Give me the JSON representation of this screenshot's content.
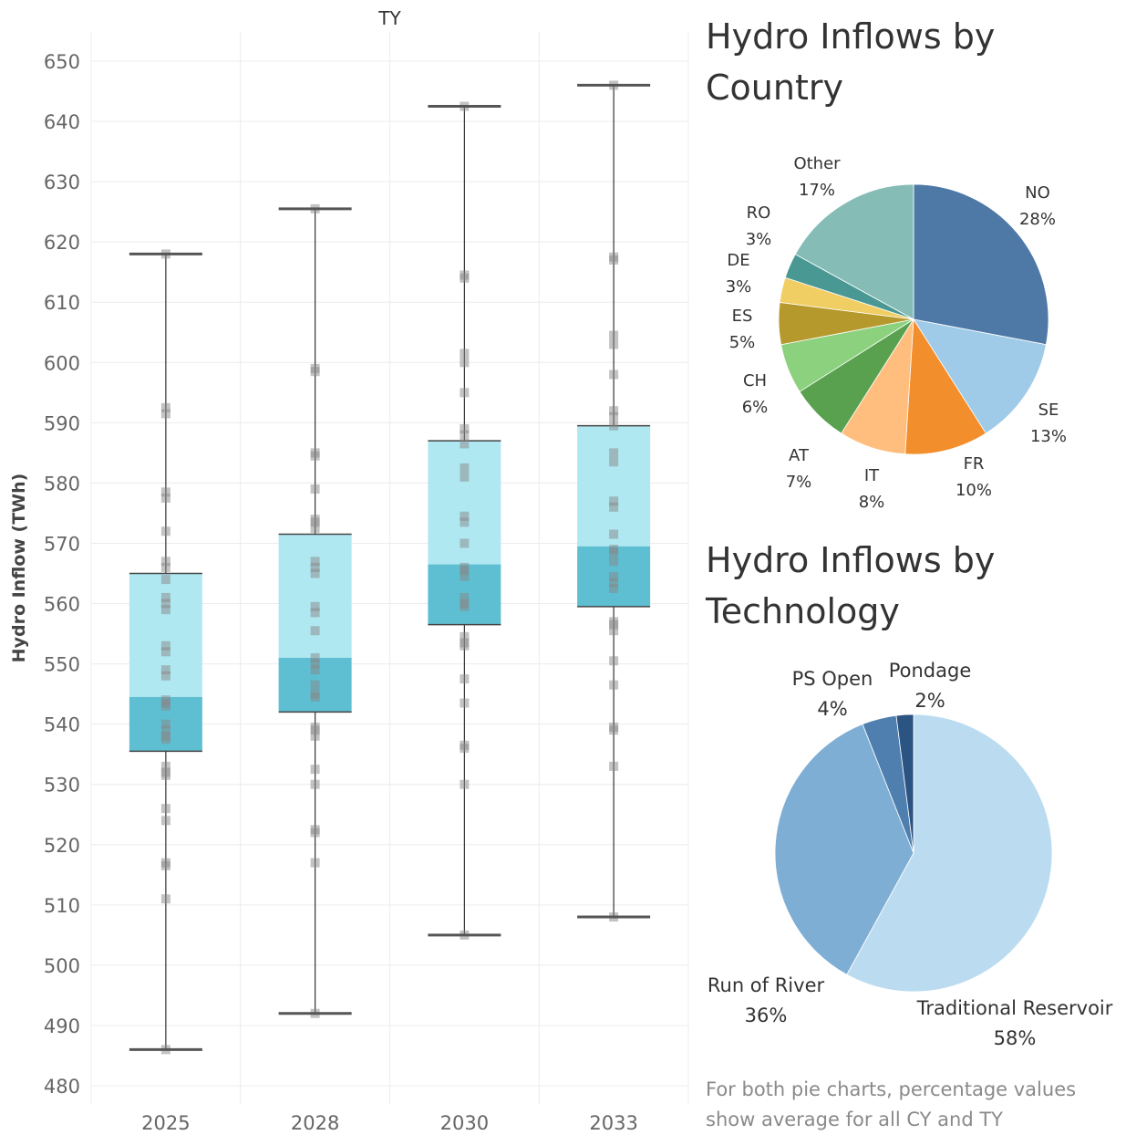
{
  "chart_data": [
    {
      "type": "box",
      "title": "TY",
      "ylabel": "Hydro Inflow (TWh)",
      "xlabel": "",
      "ylim": [
        480,
        650
      ],
      "yticks": [
        480,
        490,
        500,
        510,
        520,
        530,
        540,
        550,
        560,
        570,
        580,
        590,
        600,
        610,
        620,
        630,
        640,
        650
      ],
      "grid": true,
      "categories": [
        "2025",
        "2028",
        "2030",
        "2033"
      ],
      "boxes": [
        {
          "min": 486,
          "q1": 535.5,
          "median": 544.5,
          "q3": 565,
          "max": 618,
          "points": [
            486,
            511,
            516.5,
            517,
            524,
            526,
            531.5,
            532,
            533,
            537.5,
            538,
            539,
            540,
            543,
            543.5,
            544,
            548,
            549,
            552,
            553,
            559,
            560,
            561,
            564,
            566,
            567,
            572,
            577.5,
            578.5,
            591.5,
            592.5,
            618
          ]
        },
        {
          "min": 492,
          "q1": 542,
          "median": 551,
          "q3": 571.5,
          "max": 625.5,
          "points": [
            492,
            517,
            522,
            522.5,
            530,
            532.5,
            538,
            539,
            539.5,
            544.5,
            545,
            546.5,
            549,
            550,
            551,
            555.5,
            558.5,
            559.5,
            565,
            566,
            567,
            572.5,
            573.5,
            574,
            579,
            584.5,
            585,
            598.5,
            599,
            625.5
          ]
        },
        {
          "min": 505,
          "q1": 556.5,
          "median": 566.5,
          "q3": 587,
          "max": 642.5,
          "points": [
            505,
            530,
            536,
            536.5,
            543.5,
            547.5,
            553,
            553.5,
            554.5,
            559.5,
            560,
            561,
            564.5,
            565.5,
            566,
            570,
            573.5,
            574.5,
            581,
            582.5,
            586.5,
            588,
            589,
            595,
            600,
            601.5,
            614,
            614.5,
            642.5
          ]
        },
        {
          "min": 508,
          "q1": 559.5,
          "median": 569.5,
          "q3": 589.5,
          "max": 646,
          "points": [
            508,
            533,
            539,
            539.5,
            546.5,
            550.5,
            555.5,
            556.5,
            557,
            562.5,
            563.5,
            564.5,
            567,
            568.5,
            569,
            571.5,
            576,
            577,
            583.5,
            585,
            589.5,
            591,
            592,
            598,
            603,
            604.5,
            617,
            617.5,
            646
          ]
        }
      ],
      "colors": {
        "box_upper": "#b0e8f2",
        "box_lower": "#5fbfd2",
        "whisker": "#333333",
        "point": "#888888",
        "grid": "#ececec",
        "tick_text": "#666666"
      }
    },
    {
      "type": "pie",
      "title": "Hydro Inflows by Country",
      "slices": [
        {
          "label": "NO",
          "pct_label": "28%",
          "value": 28,
          "color": "#4e79a7"
        },
        {
          "label": "SE",
          "pct_label": "13%",
          "value": 13,
          "color": "#a0cbe8"
        },
        {
          "label": "FR",
          "pct_label": "10%",
          "value": 10,
          "color": "#f28e2b"
        },
        {
          "label": "IT",
          "pct_label": "8%",
          "value": 8,
          "color": "#ffbe7d"
        },
        {
          "label": "AT",
          "pct_label": "7%",
          "value": 7,
          "color": "#59a14f"
        },
        {
          "label": "CH",
          "pct_label": "6%",
          "value": 6,
          "color": "#8cd17d"
        },
        {
          "label": "ES",
          "pct_label": "5%",
          "value": 5,
          "color": "#b6992d"
        },
        {
          "label": "DE",
          "pct_label": "3%",
          "value": 3,
          "color": "#f1ce63"
        },
        {
          "label": "RO",
          "pct_label": "3%",
          "value": 3,
          "color": "#499894"
        },
        {
          "label": "Other",
          "pct_label": "17%",
          "value": 17,
          "color": "#86bcb6"
        }
      ]
    },
    {
      "type": "pie",
      "title": "Hydro Inflows by Technology",
      "slices": [
        {
          "label": "Traditional Reservoir",
          "pct_label": "58%",
          "value": 58,
          "color": "#bbdcf0"
        },
        {
          "label": "Run of River",
          "pct_label": "36%",
          "value": 36,
          "color": "#7faed5"
        },
        {
          "label": "PS Open",
          "pct_label": "4%",
          "value": 4,
          "color": "#4f7fae"
        },
        {
          "label": "Pondage",
          "pct_label": "2%",
          "value": 2,
          "color": "#2c5483"
        }
      ]
    }
  ],
  "pie_titles": {
    "country_line1": "Hydro Inflows by",
    "country_line2": "Country",
    "technology_line1": "Hydro Inflows by",
    "technology_line2": "Technology"
  },
  "footnote": {
    "line1": "For both pie charts, percentage values",
    "line2": "show average for all CY and TY"
  }
}
